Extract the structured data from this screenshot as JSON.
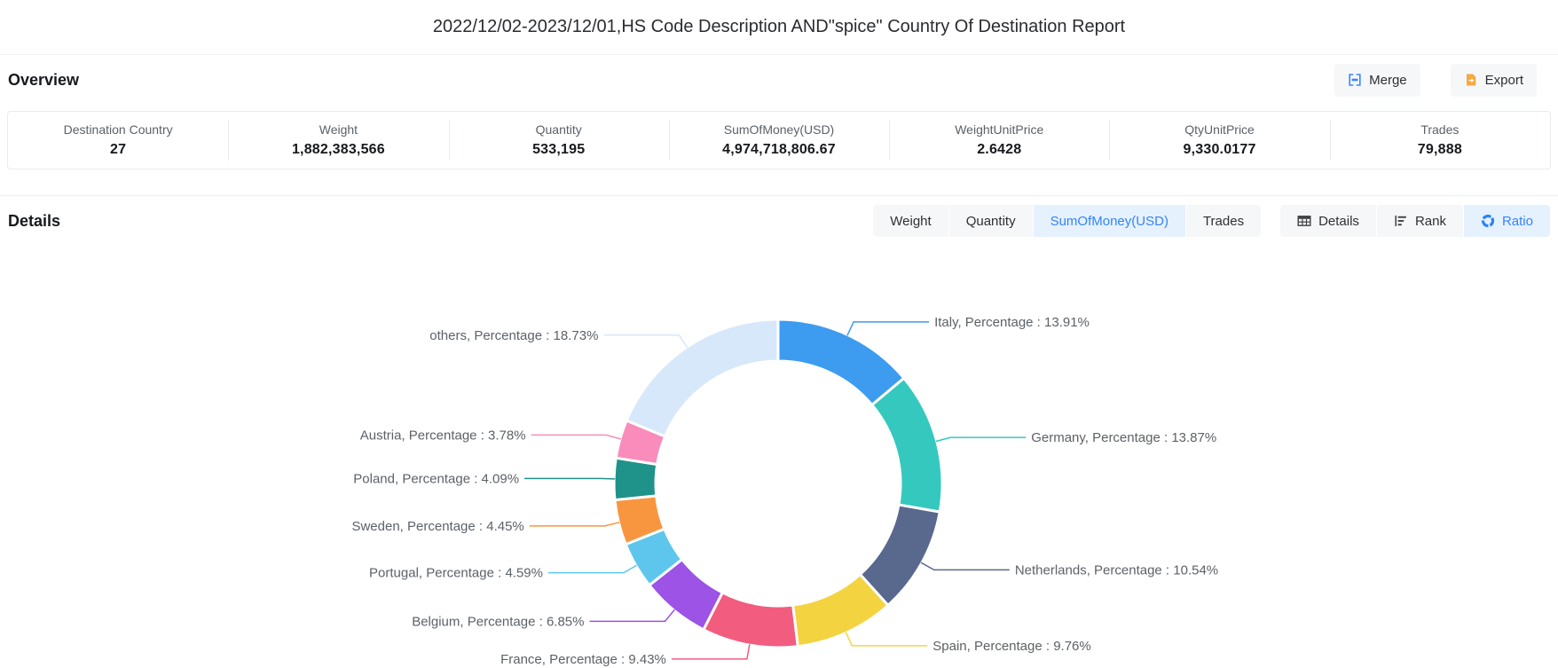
{
  "page": {
    "title": "2022/12/02-2023/12/01,HS Code Description AND\"spice\" Country Of Destination Report"
  },
  "overview": {
    "heading": "Overview",
    "buttons": {
      "merge": "Merge",
      "export": "Export"
    },
    "stats": [
      {
        "label": "Destination Country",
        "value": "27"
      },
      {
        "label": "Weight",
        "value": "1,882,383,566"
      },
      {
        "label": "Quantity",
        "value": "533,195"
      },
      {
        "label": "SumOfMoney(USD)",
        "value": "4,974,718,806.67"
      },
      {
        "label": "WeightUnitPrice",
        "value": "2.6428"
      },
      {
        "label": "QtyUnitPrice",
        "value": "9,330.0177"
      },
      {
        "label": "Trades",
        "value": "79,888"
      }
    ]
  },
  "details": {
    "heading": "Details",
    "metric_tabs": [
      {
        "label": "Weight",
        "active": false
      },
      {
        "label": "Quantity",
        "active": false
      },
      {
        "label": "SumOfMoney(USD)",
        "active": true
      },
      {
        "label": "Trades",
        "active": false
      }
    ],
    "view_tabs": [
      {
        "label": "Details",
        "icon": "table-icon",
        "active": false
      },
      {
        "label": "Rank",
        "icon": "rank-icon",
        "active": false
      },
      {
        "label": "Ratio",
        "icon": "ratio-icon",
        "active": true
      }
    ]
  },
  "chart_data": {
    "type": "pie",
    "subtype": "donut",
    "metric": "SumOfMoney(USD)",
    "label_word": "Percentage",
    "unit": "%",
    "start_angle": "top, clockwise",
    "inner_radius_ratio": 0.746,
    "legend": "none, callout labels with leader lines",
    "slices": [
      {
        "name": "Italy",
        "value": 13.91,
        "color": "#3d9bf0"
      },
      {
        "name": "Germany",
        "value": 13.87,
        "color": "#35c8be"
      },
      {
        "name": "Netherlands",
        "value": 10.54,
        "color": "#59688d"
      },
      {
        "name": "Spain",
        "value": 9.76,
        "color": "#f4d340"
      },
      {
        "name": "France",
        "value": 9.43,
        "color": "#f15c7f"
      },
      {
        "name": "Belgium",
        "value": 6.85,
        "color": "#9c53e6"
      },
      {
        "name": "Portugal",
        "value": 4.59,
        "color": "#5ec6ec"
      },
      {
        "name": "Sweden",
        "value": 4.45,
        "color": "#f89640"
      },
      {
        "name": "Poland",
        "value": 4.09,
        "color": "#1f938a"
      },
      {
        "name": "Austria",
        "value": 3.78,
        "color": "#f98cbb"
      },
      {
        "name": "others",
        "value": 18.73,
        "color": "#d7e8fa"
      }
    ]
  }
}
